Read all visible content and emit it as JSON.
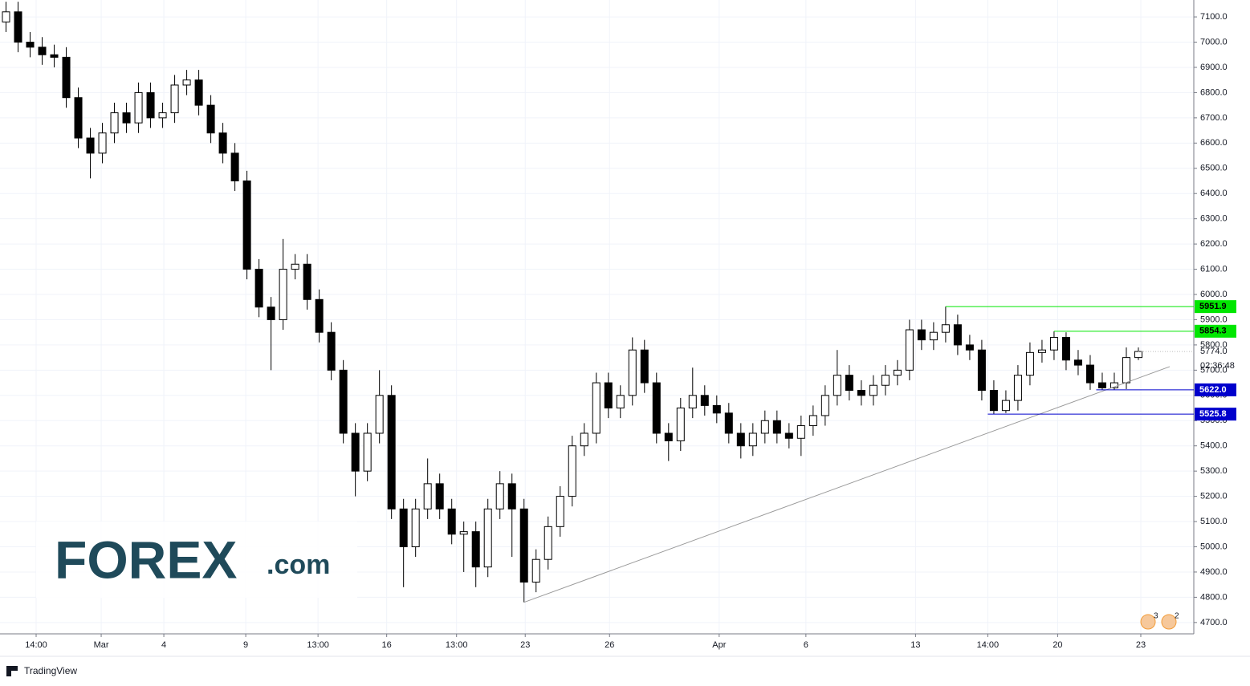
{
  "chart_data": {
    "type": "candlestick",
    "x": [
      0,
      1,
      2,
      3,
      4,
      5,
      6,
      7,
      8,
      9,
      10,
      11,
      12,
      13,
      14,
      15,
      16,
      17,
      18,
      19,
      20,
      21,
      22,
      23,
      24,
      25,
      26,
      27,
      28,
      29,
      30,
      31,
      32,
      33,
      34,
      35,
      36,
      37,
      38,
      39,
      40,
      41,
      42,
      43,
      44,
      45,
      46,
      47,
      48,
      49,
      50,
      51,
      52,
      53,
      54,
      55,
      56,
      57,
      58,
      59,
      60,
      61,
      62,
      63,
      64,
      65,
      66,
      67,
      68,
      69,
      70,
      71,
      72,
      73,
      74,
      75,
      76,
      77,
      78,
      79,
      80,
      81,
      82,
      83,
      84,
      85,
      86,
      87,
      88,
      89,
      90,
      91,
      92,
      93,
      94
    ],
    "open": [
      7080,
      7120,
      7000,
      6980,
      6950,
      6940,
      6780,
      6620,
      6560,
      6640,
      6720,
      6680,
      6800,
      6700,
      6720,
      6830,
      6850,
      6750,
      6640,
      6560,
      6450,
      6100,
      5950,
      5900,
      6100,
      6120,
      5980,
      5850,
      5700,
      5450,
      5300,
      5450,
      5600,
      5150,
      5000,
      5150,
      5250,
      5150,
      5050,
      5060,
      4920,
      5150,
      5250,
      5150,
      4860,
      4950,
      5080,
      5200,
      5400,
      5450,
      5650,
      5550,
      5600,
      5780,
      5650,
      5450,
      5420,
      5550,
      5600,
      5560,
      5530,
      5450,
      5400,
      5450,
      5500,
      5450,
      5430,
      5480,
      5520,
      5600,
      5680,
      5620,
      5600,
      5640,
      5680,
      5700,
      5860,
      5820,
      5850,
      5880,
      5800,
      5780,
      5620,
      5540,
      5580,
      5680,
      5770,
      5780,
      5830,
      5740,
      5720,
      5650,
      5630,
      5650,
      5750
    ],
    "high": [
      7160,
      7160,
      7040,
      7020,
      6990,
      6980,
      6820,
      6660,
      6680,
      6760,
      6760,
      6840,
      6840,
      6760,
      6870,
      6890,
      6890,
      6790,
      6680,
      6600,
      6490,
      6140,
      5990,
      6220,
      6160,
      6160,
      6020,
      5890,
      5740,
      5490,
      5490,
      5700,
      5640,
      5190,
      5190,
      5350,
      5290,
      5190,
      5100,
      5100,
      5190,
      5300,
      5290,
      5190,
      4990,
      5120,
      5240,
      5440,
      5490,
      5690,
      5690,
      5640,
      5830,
      5820,
      5690,
      5490,
      5590,
      5710,
      5640,
      5600,
      5570,
      5490,
      5490,
      5540,
      5540,
      5490,
      5520,
      5560,
      5640,
      5780,
      5720,
      5660,
      5680,
      5720,
      5740,
      5900,
      5900,
      5890,
      5952,
      5920,
      5840,
      5820,
      5660,
      5620,
      5720,
      5810,
      5820,
      5854,
      5850,
      5780,
      5760,
      5690,
      5690,
      5790,
      5790
    ],
    "low": [
      7040,
      6960,
      6940,
      6910,
      6900,
      6740,
      6580,
      6460,
      6520,
      6600,
      6640,
      6640,
      6660,
      6660,
      6680,
      6790,
      6710,
      6600,
      6520,
      6410,
      6060,
      5910,
      5700,
      5860,
      6060,
      5940,
      5810,
      5660,
      5410,
      5200,
      5260,
      5410,
      5110,
      4840,
      4960,
      5110,
      5110,
      5010,
      4900,
      4840,
      4880,
      5110,
      4960,
      4780,
      4820,
      4910,
      5040,
      5160,
      5360,
      5410,
      5510,
      5510,
      5560,
      5610,
      5410,
      5340,
      5380,
      5510,
      5520,
      5490,
      5410,
      5350,
      5360,
      5410,
      5410,
      5390,
      5360,
      5440,
      5480,
      5560,
      5580,
      5560,
      5560,
      5600,
      5640,
      5660,
      5780,
      5780,
      5810,
      5760,
      5740,
      5580,
      5526,
      5530,
      5540,
      5640,
      5730,
      5740,
      5700,
      5680,
      5622,
      5622,
      5622,
      5625,
      5740
    ],
    "close": [
      7120,
      7000,
      6980,
      6950,
      6940,
      6780,
      6620,
      6560,
      6640,
      6720,
      6680,
      6800,
      6700,
      6720,
      6830,
      6850,
      6750,
      6640,
      6560,
      6450,
      6100,
      5950,
      5900,
      6100,
      6120,
      5980,
      5850,
      5700,
      5450,
      5300,
      5450,
      5600,
      5150,
      5000,
      5150,
      5250,
      5150,
      5050,
      5060,
      4920,
      5150,
      5250,
      5150,
      4860,
      4950,
      5080,
      5200,
      5400,
      5450,
      5650,
      5550,
      5600,
      5780,
      5650,
      5450,
      5420,
      5550,
      5600,
      5560,
      5530,
      5450,
      5400,
      5450,
      5500,
      5450,
      5430,
      5480,
      5520,
      5600,
      5680,
      5620,
      5600,
      5640,
      5680,
      5700,
      5860,
      5820,
      5850,
      5880,
      5800,
      5780,
      5620,
      5540,
      5580,
      5680,
      5770,
      5780,
      5830,
      5740,
      5720,
      5650,
      5630,
      5650,
      5750,
      5774
    ],
    "up_color": "#ffffff",
    "down_color": "#000000",
    "xlim": [
      -0.5,
      98.6
    ],
    "xticks": [
      {
        "value": 2.5,
        "label": "14:00"
      },
      {
        "value": 7.9,
        "label": "Mar"
      },
      {
        "value": 13.1,
        "label": "4"
      },
      {
        "value": 19.9,
        "label": "9"
      },
      {
        "value": 25.9,
        "label": "13:00"
      },
      {
        "value": 31.6,
        "label": "16"
      },
      {
        "value": 37.4,
        "label": "13:00"
      },
      {
        "value": 43.1,
        "label": "23"
      },
      {
        "value": 50.1,
        "label": "26"
      },
      {
        "value": 59.2,
        "label": "Apr"
      },
      {
        "value": 66.4,
        "label": "6"
      },
      {
        "value": 75.5,
        "label": "13"
      },
      {
        "value": 81.5,
        "label": "14:00"
      },
      {
        "value": 87.3,
        "label": "20"
      },
      {
        "value": 94.2,
        "label": "23"
      }
    ],
    "ylim": [
      4655,
      7167
    ],
    "yticks": [
      {
        "value": 4700,
        "label": "4700.0"
      },
      {
        "value": 4800,
        "label": "4800.0"
      },
      {
        "value": 4900,
        "label": "4900.0"
      },
      {
        "value": 5000,
        "label": "5000.0"
      },
      {
        "value": 5100,
        "label": "5100.0"
      },
      {
        "value": 5200,
        "label": "5200.0"
      },
      {
        "value": 5300,
        "label": "5300.0"
      },
      {
        "value": 5400,
        "label": "5400.0"
      },
      {
        "value": 5500,
        "label": "5500.0"
      },
      {
        "value": 5600,
        "label": "5600.0"
      },
      {
        "value": 5700,
        "label": "5700.0"
      },
      {
        "value": 5800,
        "label": "5800.0"
      },
      {
        "value": 5900,
        "label": "5900.0"
      },
      {
        "value": 6000,
        "label": "6000.0"
      },
      {
        "value": 6100,
        "label": "6100.0"
      },
      {
        "value": 6200,
        "label": "6200.0"
      },
      {
        "value": 6300,
        "label": "6300.0"
      },
      {
        "value": 6400,
        "label": "6400.0"
      },
      {
        "value": 6500,
        "label": "6500.0"
      },
      {
        "value": 6600,
        "label": "6600.0"
      },
      {
        "value": 6700,
        "label": "6700.0"
      },
      {
        "value": 6800,
        "label": "6800.0"
      },
      {
        "value": 6900,
        "label": "6900.0"
      },
      {
        "value": 7000,
        "label": "7000.0"
      },
      {
        "value": 7100,
        "label": "7100.0"
      }
    ],
    "grid": true,
    "levels": {
      "values": [
        5951.9,
        5854.3,
        5622.0,
        5525.8
      ],
      "value_labels": [
        "5951.9",
        "5854.3",
        "5622.0",
        "5525.8"
      ],
      "colors": [
        "#00e600",
        "#00e600",
        "#0000cc",
        "#0000cc"
      ],
      "start": [
        78,
        87,
        90.5,
        81.5
      ]
    },
    "last_price": {
      "value": 5774,
      "label": "5774.0",
      "countdown": "02:36:48"
    },
    "trendline": {
      "x": [
        43,
        96.6
      ],
      "y": [
        4780,
        5714
      ],
      "color": "#999999"
    },
    "logo": "FOREX",
    "logo_suffix": ".com",
    "event_badges": [
      "3",
      "2"
    ],
    "footer": "TradingView"
  }
}
